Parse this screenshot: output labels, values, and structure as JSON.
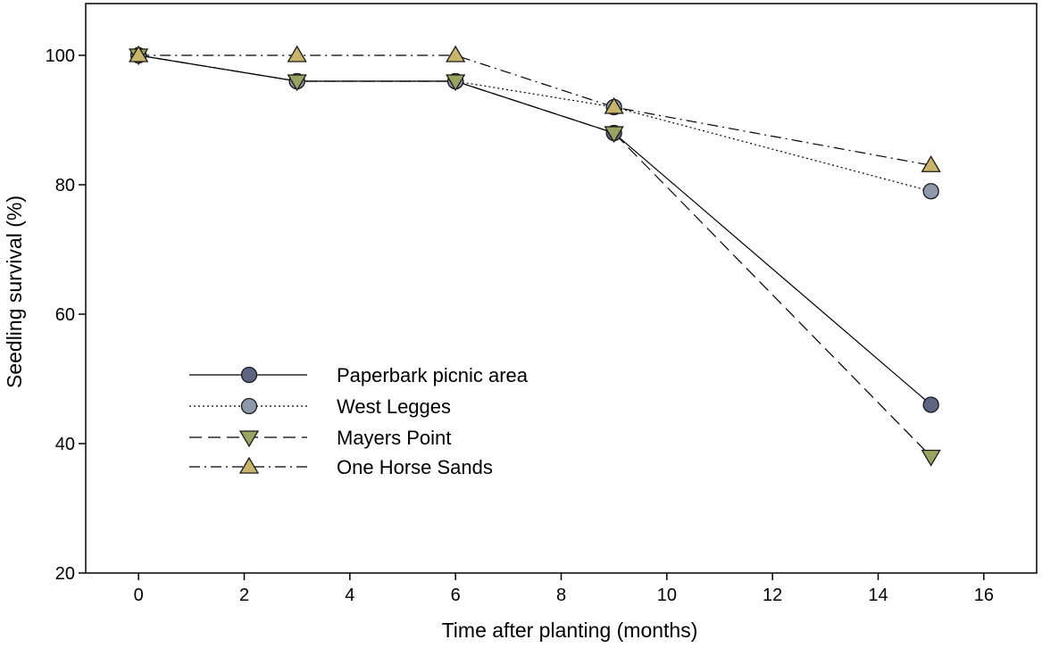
{
  "chart_data": {
    "type": "line",
    "title": "",
    "xlabel": "Time after planting (months)",
    "ylabel": "Seedling survival (%)",
    "xlim": [
      -1,
      17
    ],
    "ylim": [
      20,
      108
    ],
    "xticks": [
      0,
      2,
      4,
      6,
      8,
      10,
      12,
      14,
      16
    ],
    "yticks": [
      20,
      40,
      60,
      80,
      100
    ],
    "grid": false,
    "legend_position": "lower-left",
    "series": [
      {
        "name": "Paperbark picnic area",
        "x": [
          0,
          3,
          6,
          9,
          15
        ],
        "y": [
          100,
          96,
          96,
          88,
          46
        ],
        "marker": "circle",
        "line_style": "solid",
        "marker_color": "#5E6380"
      },
      {
        "name": "West Legges",
        "x": [
          0,
          3,
          6,
          9,
          15
        ],
        "y": [
          100,
          96,
          96,
          92,
          79
        ],
        "marker": "circle",
        "line_style": "dotted",
        "marker_color": "#8E99AC"
      },
      {
        "name": "Mayers Point",
        "x": [
          0,
          3,
          6,
          9,
          15
        ],
        "y": [
          100,
          96,
          96,
          88,
          38
        ],
        "marker": "triangle-down",
        "line_style": "dashed",
        "marker_color": "#9BA361"
      },
      {
        "name": "One Horse Sands",
        "x": [
          0,
          3,
          6,
          9,
          15
        ],
        "y": [
          100,
          100,
          100,
          92,
          83
        ],
        "marker": "triangle-up",
        "line_style": "dash-dot",
        "marker_color": "#C8B46A"
      }
    ]
  }
}
